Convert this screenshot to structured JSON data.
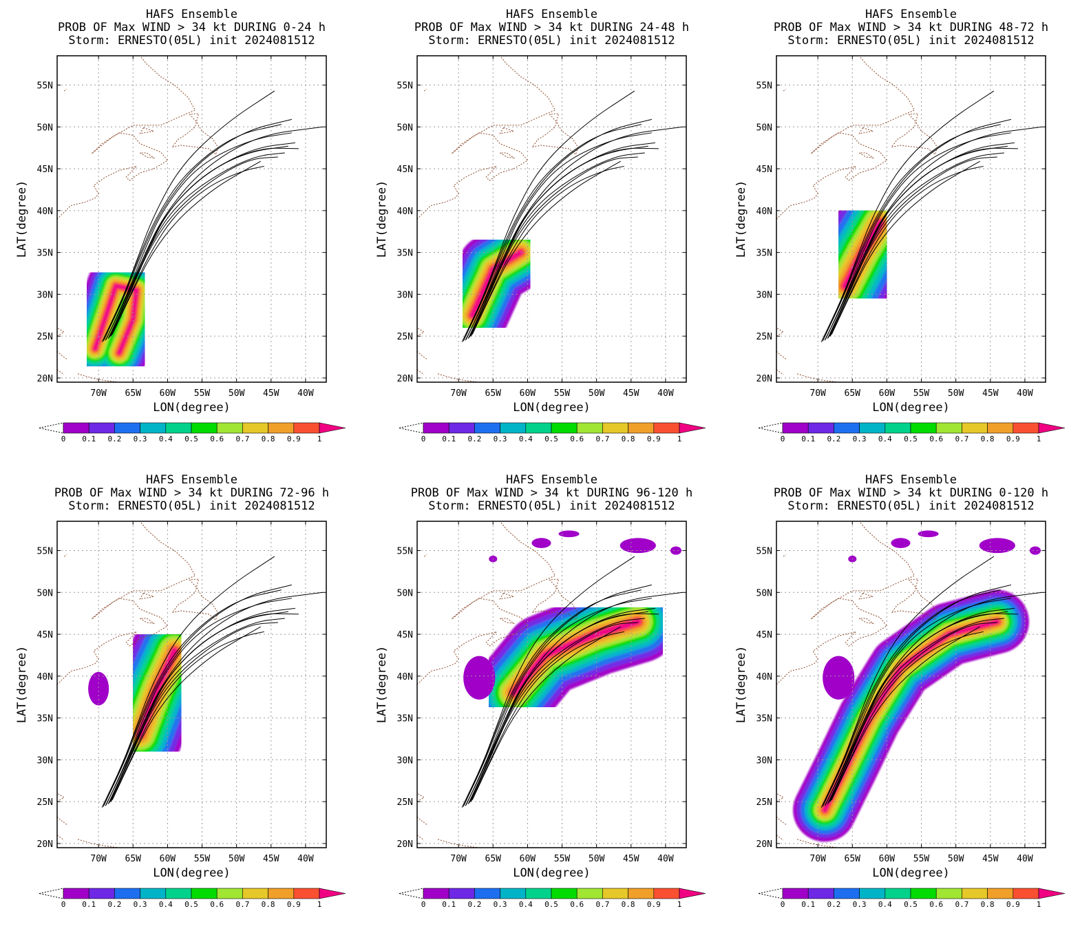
{
  "figure": {
    "colorbar": {
      "colors": [
        "#a000c8",
        "#6e28e6",
        "#1e6ef0",
        "#00b4c8",
        "#00d28c",
        "#00dc00",
        "#a0e632",
        "#e6c828",
        "#f0a028",
        "#fa5032",
        "#f00082"
      ],
      "labels": [
        "0",
        "0.1",
        "0.2",
        "0.3",
        "0.4",
        "0.5",
        "0.6",
        "0.7",
        "0.8",
        "0.9",
        "1"
      ]
    },
    "axes": {
      "xlabel": "LON(degree)",
      "ylabel": "LAT(degree)",
      "xticks": [
        "70W",
        "65W",
        "60W",
        "55W",
        "50W",
        "45W",
        "40W"
      ],
      "yticks": [
        "20N",
        "25N",
        "30N",
        "35N",
        "40N",
        "45N",
        "50N",
        "55N"
      ]
    }
  },
  "chart_data": [
    {
      "type": "heatmap",
      "panel_id": "p1",
      "title_line1": "HAFS Ensemble",
      "title_line2": "PROB OF Max WIND > 34 kt DURING  0-24 h",
      "title_line3": "Storm: ERNESTO(05L) init 2024081512",
      "xlim": [
        -76,
        -37
      ],
      "ylim": [
        19.5,
        58.5
      ],
      "prob_center_lon": -67.2,
      "prob_center_lat": 26.8,
      "prob_max": 0.95
    },
    {
      "type": "heatmap",
      "panel_id": "p2",
      "title_line1": "HAFS Ensemble",
      "title_line2": "PROB OF Max WIND > 34 kt DURING 24-48 h",
      "title_line3": "Storm: ERNESTO(05L) init 2024081512",
      "xlim": [
        -76,
        -37
      ],
      "ylim": [
        19.5,
        58.5
      ],
      "prob_center_lon": -64.5,
      "prob_center_lat": 31.5,
      "prob_max": 0.92
    },
    {
      "type": "heatmap",
      "panel_id": "p3",
      "title_line1": "HAFS Ensemble",
      "title_line2": "PROB OF Max WIND > 34 kt DURING 48-72 h",
      "title_line3": "Storm: ERNESTO(05L) init 2024081512",
      "xlim": [
        -76,
        -37
      ],
      "ylim": [
        19.5,
        58.5
      ],
      "prob_center_lon": -63.5,
      "prob_center_lat": 34.5,
      "prob_max": 0.82
    },
    {
      "type": "heatmap",
      "panel_id": "p4",
      "title_line1": "HAFS Ensemble",
      "title_line2": "PROB OF Max WIND > 34 kt DURING 72-96 h",
      "title_line3": "Storm: ERNESTO(05L) init 2024081512",
      "xlim": [
        -76,
        -37
      ],
      "ylim": [
        19.5,
        58.5
      ],
      "prob_center_lon": -61.5,
      "prob_center_lat": 38.5,
      "prob_max": 0.82
    },
    {
      "type": "heatmap",
      "panel_id": "p5",
      "title_line1": "HAFS Ensemble",
      "title_line2": "PROB OF Max WIND > 34 kt DURING 96-120 h",
      "title_line3": "Storm: ERNESTO(05L) init 2024081512",
      "xlim": [
        -76,
        -37
      ],
      "ylim": [
        19.5,
        58.5
      ],
      "prob_center_lon": -55.0,
      "prob_center_lat": 43.5,
      "prob_max": 0.8
    },
    {
      "type": "heatmap",
      "panel_id": "p6",
      "title_line1": "HAFS Ensemble",
      "title_line2": "PROB OF Max WIND > 34 kt DURING 0-120 h",
      "title_line3": "Storm: ERNESTO(05L) init 2024081512",
      "xlim": [
        -76,
        -37
      ],
      "ylim": [
        19.5,
        58.5
      ],
      "prob_center_lon": -62.0,
      "prob_center_lat": 35.0,
      "prob_max": 0.95
    }
  ],
  "ensemble_tracks": [
    [
      [
        -69.5,
        24.3
      ],
      [
        -66.5,
        29.5
      ],
      [
        -64.5,
        34.0
      ],
      [
        -62.0,
        39.5
      ],
      [
        -58.0,
        45.5
      ],
      [
        -51.5,
        50.5
      ],
      [
        -44.5,
        54.3
      ]
    ],
    [
      [
        -69.2,
        24.6
      ],
      [
        -66.2,
        29.8
      ],
      [
        -64.0,
        34.5
      ],
      [
        -61.0,
        40.0
      ],
      [
        -56.0,
        45.5
      ],
      [
        -49.0,
        49.5
      ],
      [
        -42.0,
        50.9
      ]
    ],
    [
      [
        -69.0,
        24.5
      ],
      [
        -66.0,
        29.5
      ],
      [
        -63.5,
        34.5
      ],
      [
        -60.5,
        39.5
      ],
      [
        -55.0,
        45.0
      ],
      [
        -47.0,
        49.0
      ],
      [
        -37.5,
        50.0
      ]
    ],
    [
      [
        -68.8,
        24.8
      ],
      [
        -65.8,
        30.0
      ],
      [
        -63.2,
        35.0
      ],
      [
        -60.0,
        40.0
      ],
      [
        -54.5,
        44.5
      ],
      [
        -47.5,
        47.5
      ],
      [
        -41.5,
        48.1
      ]
    ],
    [
      [
        -68.6,
        24.7
      ],
      [
        -65.6,
        30.0
      ],
      [
        -63.0,
        35.5
      ],
      [
        -59.5,
        40.5
      ],
      [
        -54.0,
        44.8
      ],
      [
        -47.0,
        47.5
      ],
      [
        -41.0,
        47.4
      ]
    ],
    [
      [
        -68.4,
        24.9
      ],
      [
        -65.4,
        30.2
      ],
      [
        -62.8,
        35.5
      ],
      [
        -59.0,
        40.5
      ],
      [
        -53.5,
        44.0
      ],
      [
        -47.5,
        46.5
      ],
      [
        -43.0,
        46.9
      ]
    ],
    [
      [
        -68.2,
        25.0
      ],
      [
        -65.2,
        30.3
      ],
      [
        -62.5,
        35.0
      ],
      [
        -59.0,
        39.5
      ],
      [
        -54.0,
        43.0
      ],
      [
        -49.0,
        44.8
      ],
      [
        -46.0,
        45.3
      ]
    ],
    [
      [
        -68.0,
        25.2
      ],
      [
        -65.0,
        30.5
      ],
      [
        -62.2,
        35.0
      ],
      [
        -58.5,
        39.0
      ],
      [
        -53.5,
        42.5
      ],
      [
        -49.5,
        44.5
      ],
      [
        -46.5,
        45.9
      ]
    ],
    [
      [
        -69.3,
        24.4
      ],
      [
        -66.4,
        29.6
      ],
      [
        -64.3,
        34.2
      ],
      [
        -61.7,
        39.2
      ],
      [
        -57.5,
        44.5
      ],
      [
        -50.5,
        49.0
      ],
      [
        -43.5,
        50.3
      ]
    ],
    [
      [
        -68.9,
        24.6
      ],
      [
        -65.9,
        29.9
      ],
      [
        -63.6,
        34.8
      ],
      [
        -60.6,
        40.3
      ],
      [
        -55.5,
        45.5
      ],
      [
        -48.0,
        48.5
      ],
      [
        -42.0,
        49.3
      ]
    ],
    [
      [
        -68.5,
        24.8
      ],
      [
        -65.5,
        30.1
      ],
      [
        -62.9,
        35.3
      ],
      [
        -59.7,
        40.3
      ],
      [
        -54.5,
        44.5
      ],
      [
        -48.5,
        47.0
      ],
      [
        -42.5,
        47.7
      ]
    ],
    [
      [
        -68.3,
        25.0
      ],
      [
        -65.3,
        30.4
      ],
      [
        -62.6,
        35.6
      ],
      [
        -58.7,
        40.2
      ],
      [
        -53.0,
        44.0
      ],
      [
        -48.0,
        46.2
      ],
      [
        -44.0,
        46.4
      ]
    ]
  ]
}
